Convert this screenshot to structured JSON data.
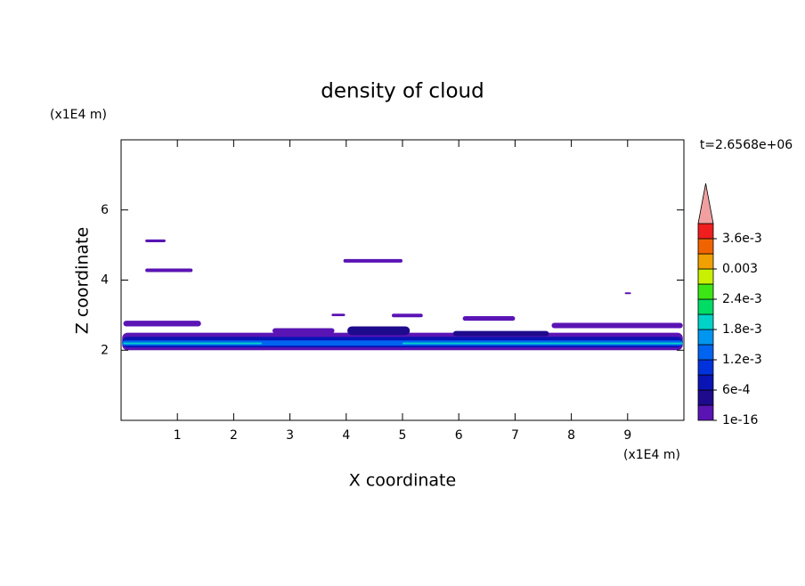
{
  "chart_data": {
    "type": "contour",
    "title": "density of cloud",
    "xlabel": "X coordinate",
    "ylabel": "Z coordinate",
    "x_unit": "(x1E4 m)",
    "y_unit": "(x1E4 m)",
    "annotation": "t=2.6568e+06",
    "xlim": [
      0,
      10
    ],
    "ylim": [
      0,
      8
    ],
    "xticks": [
      1,
      2,
      3,
      4,
      5,
      6,
      7,
      8,
      9
    ],
    "yticks": [
      2,
      4,
      6
    ],
    "colorbar": {
      "clim": [
        1e-16,
        0.0039
      ],
      "colors": [
        "#5a14b4",
        "#1e0a8c",
        "#0a14b4",
        "#0032dc",
        "#0064f0",
        "#0096f0",
        "#00d2c8",
        "#00dc64",
        "#3ce614",
        "#c8f000",
        "#f0a000",
        "#f06400",
        "#f01e1e"
      ],
      "extend_color": "#f0a0a0",
      "ticks": [
        1e-16,
        {
          "value": 0.0006,
          "label": "6e-4"
        },
        {
          "value": 0.0012,
          "label": "1.2e-3"
        },
        {
          "value": 0.0018,
          "label": "1.8e-3"
        },
        {
          "value": 0.0024,
          "label": "2.4e-3"
        },
        0.003,
        {
          "value": 0.0036,
          "label": "3.6e-3"
        }
      ]
    },
    "regions": [
      {
        "x": [
          0.02,
          9.98
        ],
        "y": [
          2.0,
          2.5
        ],
        "value": 0.0003
      },
      {
        "x": [
          0.04,
          1.42
        ],
        "y": [
          2.68,
          2.84
        ],
        "value": 0.0001
      },
      {
        "x": [
          2.69,
          3.79
        ],
        "y": [
          2.48,
          2.63
        ],
        "value": 0.0001
      },
      {
        "x": [
          7.65,
          9.98
        ],
        "y": [
          2.63,
          2.78
        ],
        "value": 0.0001
      },
      {
        "x": [
          4.02,
          5.13
        ],
        "y": [
          2.43,
          2.68
        ],
        "value": 0.0006
      },
      {
        "x": [
          5.9,
          7.6
        ],
        "y": [
          2.4,
          2.55
        ],
        "value": 0.0006
      },
      {
        "x": [
          0.02,
          9.98
        ],
        "y": [
          2.08,
          2.38
        ],
        "value": 0.0009
      },
      {
        "x": [
          0.02,
          9.98
        ],
        "y": [
          2.13,
          2.28
        ],
        "value": 0.0015
      },
      {
        "x": [
          0.04,
          2.5
        ],
        "y": [
          2.17,
          2.22
        ],
        "value": 0.0021
      },
      {
        "x": [
          5.0,
          9.98
        ],
        "y": [
          2.17,
          2.22
        ],
        "value": 0.0021
      },
      {
        "x": [
          0.43,
          0.79
        ],
        "y": [
          5.08,
          5.16
        ],
        "value": 0.0001
      },
      {
        "x": [
          0.43,
          1.27
        ],
        "y": [
          4.23,
          4.33
        ],
        "value": 0.0001
      },
      {
        "x": [
          3.95,
          5.0
        ],
        "y": [
          4.5,
          4.6
        ],
        "value": 0.0001
      },
      {
        "x": [
          3.74,
          3.98
        ],
        "y": [
          2.97,
          3.04
        ],
        "value": 0.0001
      },
      {
        "x": [
          4.81,
          5.36
        ],
        "y": [
          2.94,
          3.04
        ],
        "value": 0.0001
      },
      {
        "x": [
          6.07,
          7.0
        ],
        "y": [
          2.84,
          2.97
        ],
        "value": 0.0001
      },
      {
        "x": [
          8.95,
          9.06
        ],
        "y": [
          3.6,
          3.65
        ],
        "value": 0.0001
      }
    ]
  }
}
